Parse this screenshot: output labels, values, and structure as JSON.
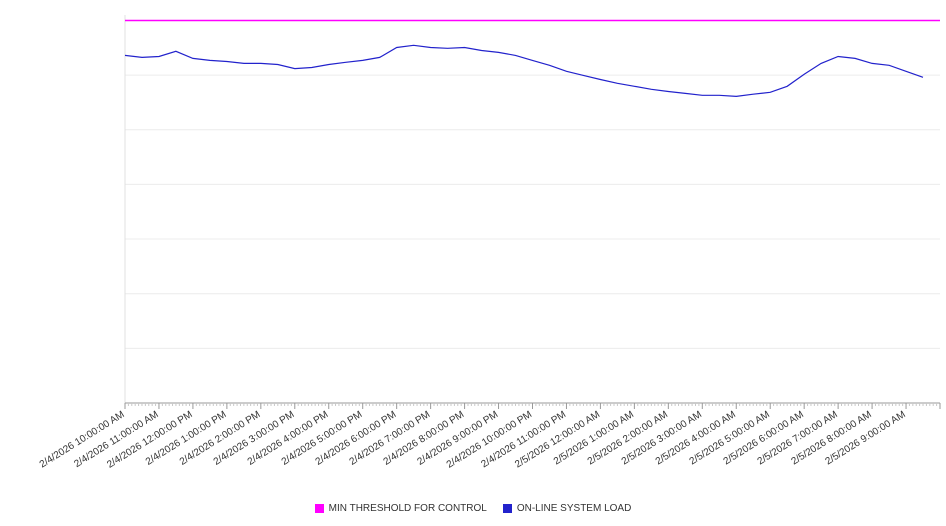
{
  "chart_data": {
    "type": "line",
    "title": "",
    "xlabel": "",
    "ylabel": "",
    "grid": true,
    "legend_position": "bottom-center",
    "hours_span": 24,
    "ylim": [
      0,
      142
    ],
    "y_gridline_step": 20,
    "x_labels": [
      "2/4/2026 10:00:00 AM",
      "2/4/2026 11:00:00 AM",
      "2/4/2026 12:00:00 PM",
      "2/4/2026 1:00:00 PM",
      "2/4/2026 2:00:00 PM",
      "2/4/2026 3:00:00 PM",
      "2/4/2026 4:00:00 PM",
      "2/4/2026 5:00:00 PM",
      "2/4/2026 6:00:00 PM",
      "2/4/2026 7:00:00 PM",
      "2/4/2026 8:00:00 PM",
      "2/4/2026 9:00:00 PM",
      "2/4/2026 10:00:00 PM",
      "2/4/2026 11:00:00 PM",
      "2/5/2026 12:00:00 AM",
      "2/5/2026 1:00:00 AM",
      "2/5/2026 2:00:00 AM",
      "2/5/2026 3:00:00 AM",
      "2/5/2026 4:00:00 AM",
      "2/5/2026 5:00:00 AM",
      "2/5/2026 6:00:00 AM",
      "2/5/2026 7:00:00 AM",
      "2/5/2026 8:00:00 AM",
      "2/5/2026 9:00:00 AM"
    ],
    "series": [
      {
        "name": "MIN THRESHOLD FOR CONTROL",
        "type": "threshold",
        "color": "#ff00ff",
        "value": 140
      },
      {
        "name": "ON-LINE SYSTEM LOAD",
        "type": "line",
        "color": "#2222cc",
        "step_hours": 0.5,
        "values": [
          127.2,
          126.5,
          126.8,
          128.7,
          126.1,
          125.4,
          125.0,
          124.3,
          124.3,
          123.9,
          122.4,
          122.8,
          123.9,
          124.7,
          125.4,
          126.5,
          130.1,
          130.9,
          130.1,
          129.8,
          130.1,
          129.0,
          128.3,
          127.2,
          125.4,
          123.6,
          121.4,
          119.9,
          118.4,
          117.0,
          115.9,
          114.8,
          114.0,
          113.3,
          112.6,
          112.6,
          112.2,
          113.0,
          113.7,
          115.9,
          120.3,
          124.3,
          126.8,
          126.1,
          124.3,
          123.6,
          121.4,
          119.2
        ]
      }
    ]
  }
}
